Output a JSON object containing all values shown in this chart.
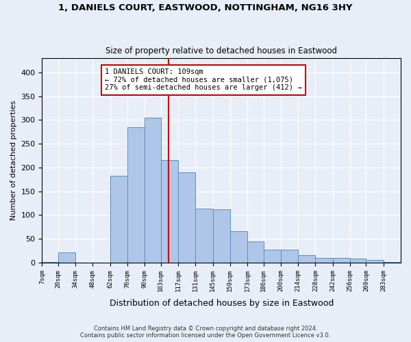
{
  "title1": "1, DANIELS COURT, EASTWOOD, NOTTINGHAM, NG16 3HY",
  "title2": "Size of property relative to detached houses in Eastwood",
  "xlabel": "Distribution of detached houses by size in Eastwood",
  "ylabel": "Number of detached properties",
  "footer1": "Contains HM Land Registry data © Crown copyright and database right 2024.",
  "footer2": "Contains public sector information licensed under the Open Government Licence v3.0.",
  "bin_labels": [
    "7sqm",
    "20sqm",
    "34sqm",
    "48sqm",
    "62sqm",
    "76sqm",
    "90sqm",
    "103sqm",
    "117sqm",
    "131sqm",
    "145sqm",
    "159sqm",
    "173sqm",
    "186sqm",
    "200sqm",
    "214sqm",
    "228sqm",
    "242sqm",
    "256sqm",
    "269sqm",
    "283sqm"
  ],
  "bar_values": [
    2,
    22,
    0,
    0,
    182,
    285,
    305,
    215,
    190,
    113,
    112,
    66,
    45,
    27,
    27,
    15,
    10,
    10,
    8,
    5,
    2
  ],
  "bin_edges": [
    7,
    20,
    34,
    48,
    62,
    76,
    90,
    103,
    117,
    131,
    145,
    159,
    173,
    186,
    200,
    214,
    228,
    242,
    256,
    269,
    283,
    297
  ],
  "property_size": 109,
  "bar_color": "#AEC6E8",
  "bar_edge_color": "#5A8FC0",
  "vline_color": "#CC0000",
  "annotation_text": "1 DANIELS COURT: 109sqm\n← 72% of detached houses are smaller (1,075)\n27% of semi-detached houses are larger (412) →",
  "annotation_box_color": "#FFFFFF",
  "annotation_box_edge": "#CC0000",
  "bg_color": "#E8EEF7",
  "grid_color": "#FFFFFF",
  "ylim": [
    0,
    430
  ],
  "yticks": [
    0,
    50,
    100,
    150,
    200,
    250,
    300,
    350,
    400
  ]
}
